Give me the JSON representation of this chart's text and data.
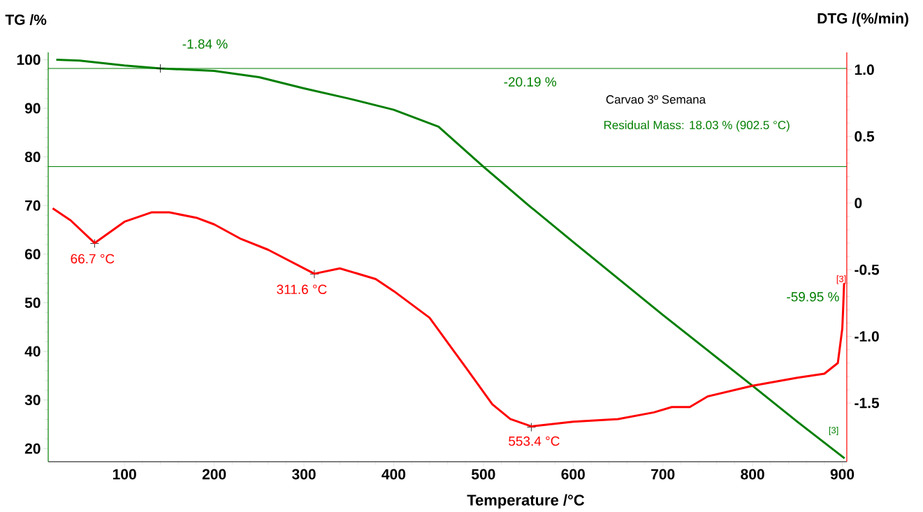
{
  "chart_data": {
    "type": "line",
    "title": "Carvao 3º Semana",
    "xlabel": "Temperature /°C",
    "ylabel": "TG /%",
    "y2label": "DTG /(%/min)",
    "xlim": [
      15,
      905
    ],
    "xticks": [
      100,
      200,
      300,
      400,
      500,
      600,
      700,
      800,
      900
    ],
    "ylim": [
      17.3,
      101.5
    ],
    "yticks": [
      20,
      30,
      40,
      50,
      60,
      70,
      80,
      90,
      100
    ],
    "y2lim": [
      -1.94,
      1.13
    ],
    "y2ticks": [
      {
        "value": 1,
        "label": "1.0"
      },
      0.5,
      0,
      -0.5,
      {
        "value": -1,
        "label": "-1.0"
      },
      -1.5
    ],
    "series": [
      {
        "color": "#007f00",
        "x": [
          24,
          50,
          100,
          140,
          200,
          250,
          300,
          350,
          400,
          450,
          500,
          550,
          600,
          650,
          700,
          750,
          800,
          850,
          902.5
        ],
        "values": [
          100,
          99.8,
          98.8,
          98.2,
          97.7,
          96.4,
          94.1,
          92.0,
          89.7,
          86.2,
          78.0,
          70.1,
          62.5,
          55.0,
          47.5,
          40.2,
          32.9,
          25.5,
          18.0
        ]
      },
      {
        "color": "#ff0000",
        "axis": "y2",
        "x": [
          20,
          40,
          66.7,
          100,
          130,
          150,
          180,
          200,
          230,
          260,
          311.6,
          340,
          380,
          400,
          440,
          480,
          510,
          530,
          553.4,
          600,
          650,
          690,
          710,
          730,
          750,
          800,
          850,
          880,
          895,
          900,
          901,
          902
        ],
        "values": [
          -0.04,
          -0.13,
          -0.3,
          -0.14,
          -0.07,
          -0.07,
          -0.11,
          -0.16,
          -0.27,
          -0.35,
          -0.53,
          -0.49,
          -0.57,
          -0.66,
          -0.86,
          -1.23,
          -1.51,
          -1.62,
          -1.675,
          -1.64,
          -1.62,
          -1.57,
          -1.53,
          -1.53,
          -1.45,
          -1.37,
          -1.31,
          -1.28,
          -1.2,
          -0.94,
          -0.78,
          -0.6
        ]
      }
    ],
    "ref_lines": [
      {
        "axis": "y",
        "value": 98.2,
        "color": "#007f00"
      },
      {
        "axis": "y",
        "value": 78.0,
        "color": "#007f00"
      }
    ],
    "annotations": [
      {
        "text": "-1.84 %",
        "x": 140,
        "y": 98.2
      },
      "-20.19 %",
      "-59.95 %",
      {
        "text": "66.7 °C",
        "x": 66.7,
        "y": 62.2
      },
      {
        "text": "311.6 °C",
        "x": 311.6,
        "y": 55.9
      },
      {
        "text": "553.4 °C",
        "x": 553.4,
        "y": 24.4
      },
      "Residual Mass: 18.03 % (902.5 °C)",
      {
        "text": "[3]",
        "x": 902,
        "y": 53.7
      },
      "[3]"
    ],
    "marker": "none",
    "line_style": "solid"
  }
}
